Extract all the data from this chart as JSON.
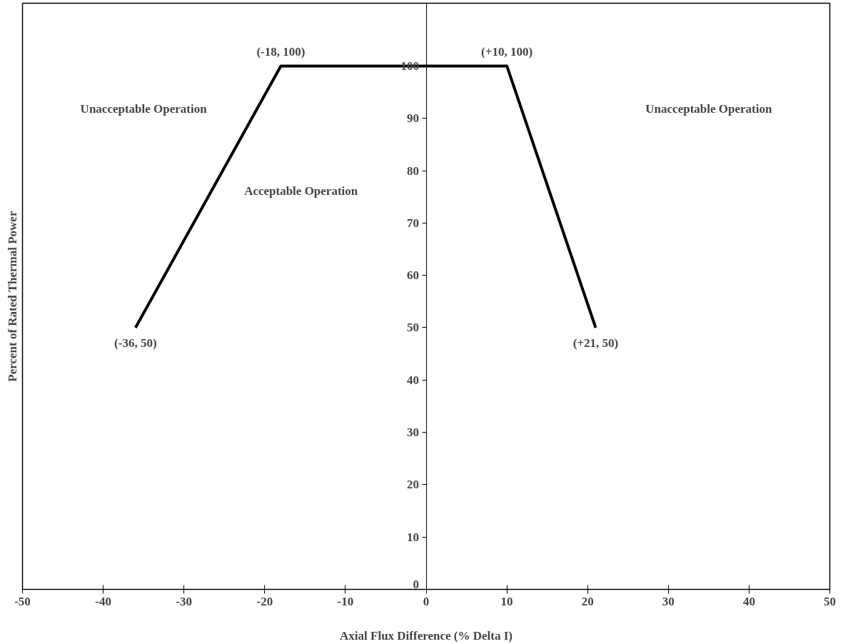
{
  "chart_data": {
    "type": "line",
    "xlabel": "Axial Flux Difference (% Delta I)",
    "ylabel": "Percent of Rated Thermal Power",
    "x": [
      -36,
      -18,
      10,
      21
    ],
    "series": [
      {
        "color": "#000000",
        "values": [
          50,
          100,
          100,
          50
        ]
      }
    ],
    "xlim": [
      -50,
      50
    ],
    "xticks": [
      -50,
      -40,
      -30,
      -20,
      -10,
      0,
      10,
      20,
      30,
      40,
      50
    ],
    "ylim": [
      0,
      112
    ],
    "yticks": [
      0,
      10,
      20,
      30,
      40,
      50,
      60,
      70,
      80,
      90,
      100
    ],
    "grid": false,
    "marker": "none",
    "line_style": "solid",
    "annotations": [
      {
        "text": "(-18, 100)",
        "x": -18,
        "y": 100
      },
      {
        "text": "(+10, 100)",
        "x": 10,
        "y": 100
      },
      {
        "text": "(-36, 50)",
        "x": -36,
        "y": 50
      },
      {
        "text": "(+21, 50)",
        "x": 21,
        "y": 50
      },
      "Unacceptable Operation",
      "Unacceptable Operation",
      "Acceptable Operation"
    ]
  }
}
